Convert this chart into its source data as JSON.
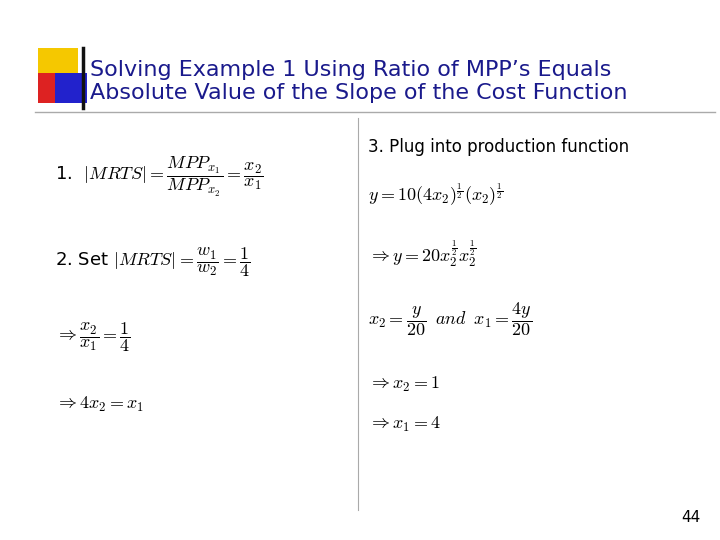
{
  "title_line1": "Solving Example 1 Using Ratio of MPP’s Equals",
  "title_line2": "Absolute Value of the Slope of the Cost Function",
  "title_color": "#1a1a8c",
  "bg_color": "#ffffff",
  "slide_number": "44",
  "accent_yellow": "#f5c800",
  "accent_red": "#dd2222",
  "accent_blue": "#2222cc",
  "divider_color": "#aaaaaa",
  "black_line": "#111111"
}
